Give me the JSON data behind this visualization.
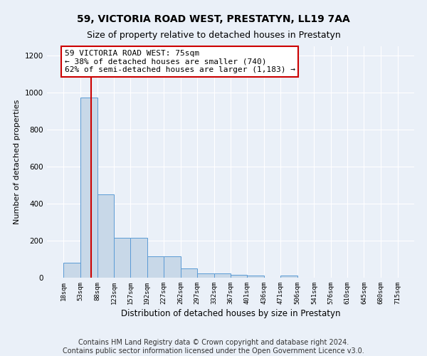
{
  "title": "59, VICTORIA ROAD WEST, PRESTATYN, LL19 7AA",
  "subtitle": "Size of property relative to detached houses in Prestatyn",
  "xlabel": "Distribution of detached houses by size in Prestatyn",
  "ylabel": "Number of detached properties",
  "bin_edges": [
    18,
    53,
    88,
    123,
    157,
    192,
    227,
    262,
    297,
    332,
    367,
    401,
    436,
    471,
    506,
    541,
    576,
    610,
    645,
    680,
    715
  ],
  "bar_heights": [
    80,
    975,
    450,
    215,
    215,
    115,
    115,
    50,
    25,
    25,
    15,
    10,
    0,
    10,
    0,
    0,
    0,
    0,
    0,
    0
  ],
  "bar_color": "#c8d8e8",
  "bar_edge_color": "#5b9bd5",
  "property_size": 75,
  "red_line_color": "#cc0000",
  "annotation_text": "59 VICTORIA ROAD WEST: 75sqm\n← 38% of detached houses are smaller (740)\n62% of semi-detached houses are larger (1,183) →",
  "annotation_box_color": "#ffffff",
  "annotation_box_edge_color": "#cc0000",
  "ylim": [
    0,
    1250
  ],
  "yticks": [
    0,
    200,
    400,
    600,
    800,
    1000,
    1200
  ],
  "background_color": "#eaf0f8",
  "grid_color": "#ffffff",
  "footer_line1": "Contains HM Land Registry data © Crown copyright and database right 2024.",
  "footer_line2": "Contains public sector information licensed under the Open Government Licence v3.0.",
  "title_fontsize": 10,
  "subtitle_fontsize": 9,
  "annotation_fontsize": 8,
  "footer_fontsize": 7,
  "ylabel_fontsize": 8,
  "xlabel_fontsize": 8.5
}
